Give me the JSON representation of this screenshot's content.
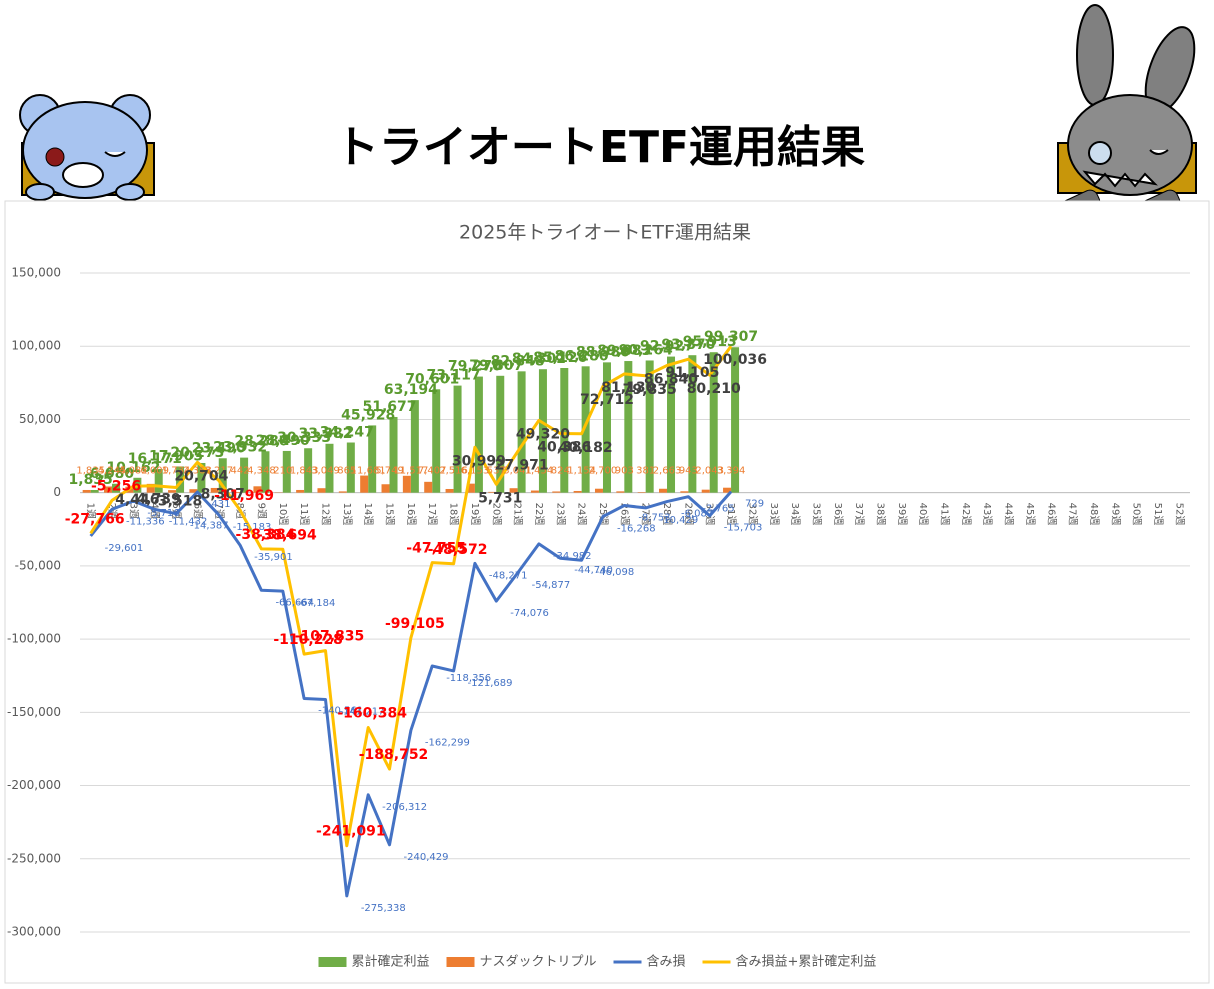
{
  "header": {
    "title": "トライオートETF運用結果"
  },
  "chart_data": {
    "type": "bar",
    "title": "2025年トライオートETF運用結果",
    "categories": [
      "1週",
      "2週",
      "3週",
      "4週",
      "5週",
      "6週",
      "7週",
      "8週",
      "9週",
      "10週",
      "11週",
      "12週",
      "13週",
      "14週",
      "15週",
      "16週",
      "17週",
      "18週",
      "19週",
      "20週",
      "21週",
      "22週",
      "23週",
      "24週",
      "25週",
      "26週",
      "27週",
      "28週",
      "29週",
      "30週",
      "31週",
      "32週",
      "33週",
      "34週",
      "35週",
      "36週",
      "37週",
      "38週",
      "39週",
      "40週",
      "41週",
      "42週",
      "43週",
      "44週",
      "45週",
      "46週",
      "47週",
      "48週",
      "49週",
      "50週",
      "51週",
      "52週"
    ],
    "ylim": [
      -300000,
      150000
    ],
    "yticks": [
      {
        "value": -300000,
        "label": "-300,000"
      },
      {
        "value": -250000,
        "label": "-250,000"
      },
      {
        "value": -200000,
        "label": "-200,000"
      },
      {
        "value": -150000,
        "label": "-150,000"
      },
      {
        "value": -100000,
        "label": "-100,000"
      },
      {
        "value": -50000,
        "label": "-50,000"
      },
      0,
      {
        "value": 50000,
        "label": "50,000"
      },
      {
        "value": 100000,
        "label": "100,000"
      },
      {
        "value": 150000,
        "label": "150,000"
      }
    ],
    "grid": true,
    "legend": "bottom",
    "series": [
      {
        "name": "累計確定利益",
        "type": "bar",
        "color": "#70ad47",
        "values": [
          1835,
          6080,
          10162,
          16171,
          17905,
          20273,
          23490,
          23932,
          28280,
          28490,
          30333,
          33382,
          34247,
          45928,
          51677,
          63194,
          70601,
          73117,
          79270,
          79807,
          82848,
          84302,
          85126,
          86280,
          88980,
          89883,
          90264,
          92927,
          93870,
          95913,
          99307,
          null,
          null,
          null,
          null,
          null,
          null,
          null,
          null,
          null,
          null,
          null,
          null,
          null,
          null,
          null,
          null,
          null,
          null,
          null,
          null,
          null
        ],
        "value_labels": [
          "1,835",
          "6,080",
          "10,162",
          "16,171",
          "17,905",
          "20,273",
          "23,490",
          "23,932",
          "28,280",
          "28,490",
          "30,333",
          "33,382",
          "34,247",
          "45,928",
          "51,677",
          "63,194",
          "70,601",
          "73,117",
          "79,270",
          "79,807",
          "82,848",
          "84,302",
          "85,126",
          "86,280",
          "88,980",
          "89,883",
          "90,264",
          "92,927",
          "93,870",
          "95,913",
          "99,307",
          null,
          null,
          null,
          null,
          null,
          null,
          null,
          null,
          null,
          null,
          null,
          null,
          null,
          null,
          null,
          null,
          null,
          null,
          null,
          null,
          null
        ]
      },
      {
        "name": "ナスダックトリプル",
        "type": "bar",
        "color": "#ed7d31",
        "values": [
          1835,
          4245,
          4082,
          6009,
          1734,
          2368,
          3217,
          442,
          4348,
          210,
          1843,
          3049,
          865,
          11681,
          5749,
          11517,
          7407,
          2516,
          6153,
          537,
          3041,
          1454,
          824,
          1154,
          2700,
          903,
          381,
          2663,
          943,
          2043,
          3394,
          null,
          null,
          null,
          null,
          null,
          null,
          null,
          null,
          null,
          null,
          null,
          null,
          null,
          null,
          null,
          null,
          null,
          null,
          null,
          null,
          null
        ],
        "value_labels": [
          "1,835",
          "4,245",
          "4,082",
          "6,009",
          "1,734",
          "2,368",
          "3,217",
          "442",
          "4,348",
          "210",
          "1,843",
          "3,049",
          "865",
          "11,681",
          "5,749",
          "11,517",
          "7,407",
          "2,516",
          "6,153",
          "537",
          "3,041",
          "1,454",
          "824",
          "1,154",
          "2,700",
          "903",
          "381",
          "2,663",
          "943",
          "2,043",
          "3,394",
          null,
          null,
          null,
          null,
          null,
          null,
          null,
          null,
          null,
          null,
          null,
          null,
          null,
          null,
          null,
          null,
          null,
          null,
          null,
          null,
          null
        ]
      },
      {
        "name": "含み損",
        "type": "line",
        "color": "#4472c4",
        "values": [
          -29601,
          -11336,
          -5716,
          -11432,
          -14387,
          431,
          -15183,
          -35901,
          -66664,
          -67184,
          -140561,
          -141217,
          -275338,
          -206312,
          -240429,
          -162299,
          -118356,
          -121689,
          -48271,
          -74076,
          -54877,
          -34982,
          -44740,
          -46098,
          -16268,
          -8753,
          -10429,
          -6087,
          -2765,
          -15703,
          729,
          null,
          null,
          null,
          null,
          null,
          null,
          null,
          null,
          null,
          null,
          null,
          null,
          null,
          null,
          null,
          null,
          null,
          null,
          null,
          null,
          null
        ],
        "value_labels": [
          "-29,601",
          "-11,336",
          "-5,716",
          "-11,432",
          "-14,387",
          "431",
          "-15,183",
          "-35,901",
          "-66,664",
          "-67,184",
          "-140,561",
          "-141,217",
          "-275,338",
          "-206,312",
          "-240,429",
          "-162,299",
          "-118,356",
          "-121,689",
          "-48,271",
          "-74,076",
          "-54,877",
          "-34,982",
          "-44,740",
          "-46,098",
          "-16,268",
          "-8,753",
          "-10,429",
          "-6,087",
          "-2,765",
          "-15,703",
          "729",
          null,
          null,
          null,
          null,
          null,
          null,
          null,
          null,
          null,
          null,
          null,
          null,
          null,
          null,
          null,
          null,
          null,
          null,
          null,
          null,
          null
        ]
      },
      {
        "name": "含み損益+累計確定利益",
        "type": "line",
        "color": "#ffc000",
        "values": [
          -27766,
          -5256,
          4446,
          4739,
          3518,
          20704,
          8307,
          -11969,
          -38384,
          -38694,
          -110228,
          -107835,
          -241091,
          -160384,
          -188752,
          -99105,
          -47755,
          -48572,
          30999,
          5731,
          27971,
          49320,
          40386,
          40182,
          72712,
          81130,
          79835,
          86840,
          91105,
          80210,
          100036,
          null,
          null,
          null,
          null,
          null,
          null,
          null,
          null,
          null,
          null,
          null,
          null,
          null,
          null,
          null,
          null,
          null,
          null,
          null,
          null,
          null
        ],
        "value_labels": [
          "-27,766",
          "-5,256",
          "4,446",
          "4,739",
          "3,518",
          "20,704",
          "8,307",
          "-11,969",
          "-38,384",
          "-38,694",
          "-110,228",
          "-107,835",
          "-241,091",
          "-160,384",
          "-188,752",
          "-99,105",
          "-47,755",
          "-48,572",
          "30,999",
          "5,731",
          "27,971",
          "49,320",
          "40,386",
          "40,182",
          "72,712",
          "81,130",
          "79,835",
          "86,840",
          "91,105",
          "80,210",
          "100,036",
          null,
          null,
          null,
          null,
          null,
          null,
          null,
          null,
          null,
          null,
          null,
          null,
          null,
          null,
          null,
          null,
          null,
          null,
          null,
          null,
          null
        ]
      }
    ]
  }
}
